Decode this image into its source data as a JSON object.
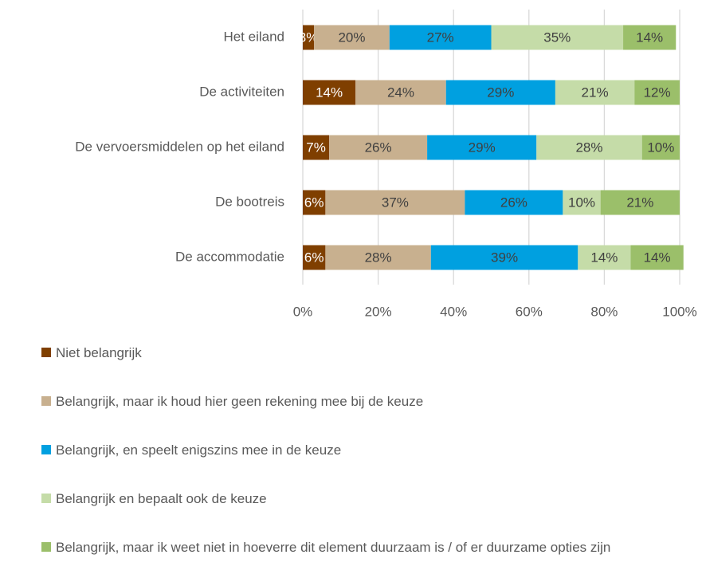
{
  "chart_data": {
    "type": "stacked-bar-horizontal",
    "categories": [
      "Het eiland",
      "De activiteiten",
      "De vervoersmiddelen op het eiland",
      "De bootreis",
      "De accommodatie"
    ],
    "series": [
      {
        "name": "Niet belangrijk",
        "color": "#7f3f00",
        "values": [
          3,
          14,
          7,
          6,
          6
        ],
        "value_labels": [
          "3%",
          "14%",
          "7%",
          "6%",
          "6%"
        ]
      },
      {
        "name": "Belangrijk, maar ik houd hier geen rekening mee bij de keuze",
        "color": "#c8b08f",
        "values": [
          20,
          24,
          26,
          37,
          28
        ],
        "value_labels": [
          "20%",
          "24%",
          "26%",
          "37%",
          "28%"
        ]
      },
      {
        "name": "Belangrijk, en speelt enigszins mee in de keuze",
        "color": "#00a0e0",
        "values": [
          27,
          29,
          29,
          26,
          39
        ],
        "value_labels": [
          "27%",
          "29%",
          "29%",
          "26%",
          "39%"
        ]
      },
      {
        "name": "Belangrijk en bepaalt ook de keuze",
        "color": "#c5dca8",
        "values": [
          35,
          21,
          28,
          10,
          14
        ],
        "value_labels": [
          "35%",
          "21%",
          "28%",
          "10%",
          "14%"
        ]
      },
      {
        "name": "Belangrijk, maar ik weet niet in hoeverre dit element duurzaam is / of er duurzame opties zijn",
        "color": "#9bbf6a",
        "values": [
          14,
          12,
          10,
          21,
          14
        ],
        "value_labels": [
          "14%",
          "12%",
          "10%",
          "21%",
          "14%"
        ]
      }
    ],
    "xlim": [
      0,
      100
    ],
    "xticks": [
      {
        "value": 0,
        "label": "0%"
      },
      {
        "value": 20,
        "label": "20%"
      },
      {
        "value": 40,
        "label": "40%"
      },
      {
        "value": 60,
        "label": "60%"
      },
      {
        "value": 80,
        "label": "80%"
      },
      {
        "value": 100,
        "label": "100%"
      }
    ],
    "grid": true,
    "legend": "bottom"
  }
}
